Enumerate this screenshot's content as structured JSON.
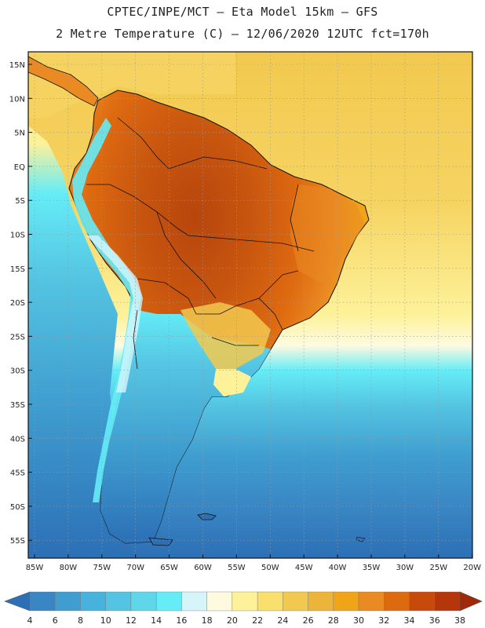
{
  "title_line1": "CPTEC/INPE/MCT –  Eta Model 15km – GFS",
  "title_line2": "2 Metre Temperature (C) – 12/06/2020 12UTC fct=170h",
  "lat_labels": [
    "15N",
    "10N",
    "5N",
    "EQ",
    "5S",
    "10S",
    "15S",
    "20S",
    "25S",
    "30S",
    "35S",
    "40S",
    "45S",
    "50S",
    "55S"
  ],
  "lon_labels": [
    "85W",
    "80W",
    "75W",
    "70W",
    "65W",
    "60W",
    "55W",
    "50W",
    "45W",
    "40W",
    "35W",
    "30W",
    "25W",
    "20W"
  ],
  "colorbar": {
    "labels": [
      "4",
      "6",
      "8",
      "10",
      "12",
      "14",
      "16",
      "18",
      "20",
      "22",
      "24",
      "26",
      "28",
      "30",
      "32",
      "34",
      "36",
      "38"
    ],
    "colors": [
      "#2c6fb6",
      "#3a86c4",
      "#3f9dcf",
      "#47b2db",
      "#54c4e2",
      "#5fd6ea",
      "#65ecf7",
      "#d6f5fb",
      "#fefae0",
      "#fdf29a",
      "#f9e06d",
      "#f2c94f",
      "#edb43a",
      "#f0a519",
      "#ea8a22",
      "#de6a10",
      "#c84a0a",
      "#b5360a",
      "#9f2a0a"
    ]
  },
  "colors": {
    "ocean_north": "#f2c94f",
    "ocean_mid": "#fdf29a",
    "ocean_south": "#3a86c4",
    "land_hot": "#c8560f",
    "land_warm": "#ea8a22",
    "andes_cold": "#5fd6ea",
    "patagonia": "#3f9dcf"
  }
}
